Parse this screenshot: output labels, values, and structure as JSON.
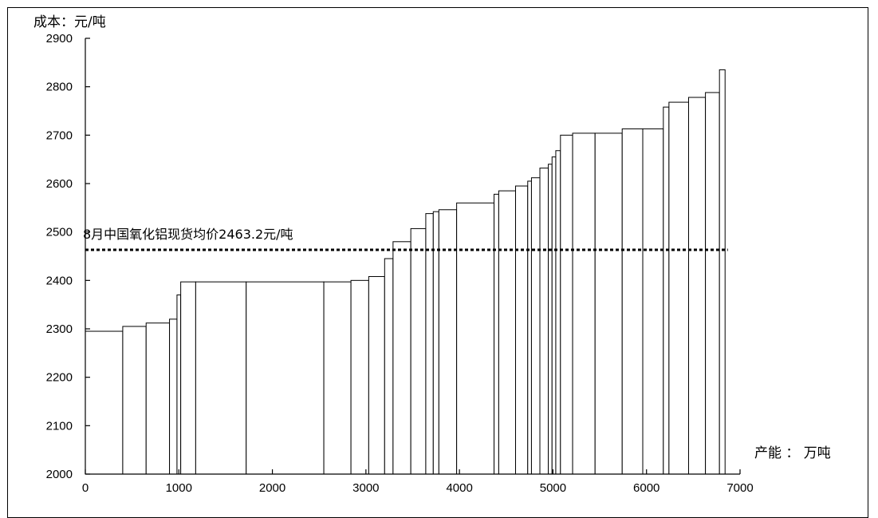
{
  "chart_data": {
    "type": "bar",
    "subtype": "cost-curve (variable-width stepped bars)",
    "ylabel": "成本：元/吨",
    "xlabel": "产能 ： 万吨",
    "xlim": [
      0,
      7000
    ],
    "ylim": [
      2000,
      2900
    ],
    "xticks": [
      0,
      1000,
      2000,
      3000,
      4000,
      5000,
      6000,
      7000
    ],
    "yticks": [
      2000,
      2100,
      2200,
      2300,
      2400,
      2500,
      2600,
      2700,
      2800,
      2900
    ],
    "grid": false,
    "legend": "none",
    "reference_line": {
      "value": 2463.2,
      "label": "8月中国氧化铝现货均价2463.2元/吨",
      "style": "dotted"
    },
    "bars": [
      {
        "x0": 0,
        "x1": 400,
        "value": 2295
      },
      {
        "x0": 400,
        "x1": 650,
        "value": 2305
      },
      {
        "x0": 650,
        "x1": 900,
        "value": 2312
      },
      {
        "x0": 900,
        "x1": 980,
        "value": 2320
      },
      {
        "x0": 980,
        "x1": 1020,
        "value": 2370
      },
      {
        "x0": 1020,
        "x1": 1180,
        "value": 2397
      },
      {
        "x0": 1180,
        "x1": 1720,
        "value": 2397
      },
      {
        "x0": 1720,
        "x1": 2550,
        "value": 2397
      },
      {
        "x0": 2550,
        "x1": 2840,
        "value": 2397
      },
      {
        "x0": 2840,
        "x1": 3030,
        "value": 2400
      },
      {
        "x0": 3030,
        "x1": 3200,
        "value": 2408
      },
      {
        "x0": 3200,
        "x1": 3290,
        "value": 2445
      },
      {
        "x0": 3290,
        "x1": 3480,
        "value": 2480
      },
      {
        "x0": 3480,
        "x1": 3640,
        "value": 2507
      },
      {
        "x0": 3640,
        "x1": 3720,
        "value": 2538
      },
      {
        "x0": 3720,
        "x1": 3780,
        "value": 2542
      },
      {
        "x0": 3780,
        "x1": 3970,
        "value": 2546
      },
      {
        "x0": 3970,
        "x1": 4370,
        "value": 2560
      },
      {
        "x0": 4370,
        "x1": 4420,
        "value": 2578
      },
      {
        "x0": 4420,
        "x1": 4600,
        "value": 2585
      },
      {
        "x0": 4600,
        "x1": 4730,
        "value": 2595
      },
      {
        "x0": 4730,
        "x1": 4770,
        "value": 2605
      },
      {
        "x0": 4770,
        "x1": 4860,
        "value": 2612
      },
      {
        "x0": 4860,
        "x1": 4950,
        "value": 2632
      },
      {
        "x0": 4950,
        "x1": 4990,
        "value": 2640
      },
      {
        "x0": 4990,
        "x1": 5030,
        "value": 2655
      },
      {
        "x0": 5030,
        "x1": 5080,
        "value": 2668
      },
      {
        "x0": 5080,
        "x1": 5210,
        "value": 2700
      },
      {
        "x0": 5210,
        "x1": 5450,
        "value": 2704
      },
      {
        "x0": 5450,
        "x1": 5740,
        "value": 2704
      },
      {
        "x0": 5740,
        "x1": 5960,
        "value": 2713
      },
      {
        "x0": 5960,
        "x1": 6180,
        "value": 2713
      },
      {
        "x0": 6180,
        "x1": 6240,
        "value": 2758
      },
      {
        "x0": 6240,
        "x1": 6450,
        "value": 2768
      },
      {
        "x0": 6450,
        "x1": 6630,
        "value": 2778
      },
      {
        "x0": 6630,
        "x1": 6780,
        "value": 2788
      },
      {
        "x0": 6780,
        "x1": 6840,
        "value": 2835
      }
    ]
  }
}
